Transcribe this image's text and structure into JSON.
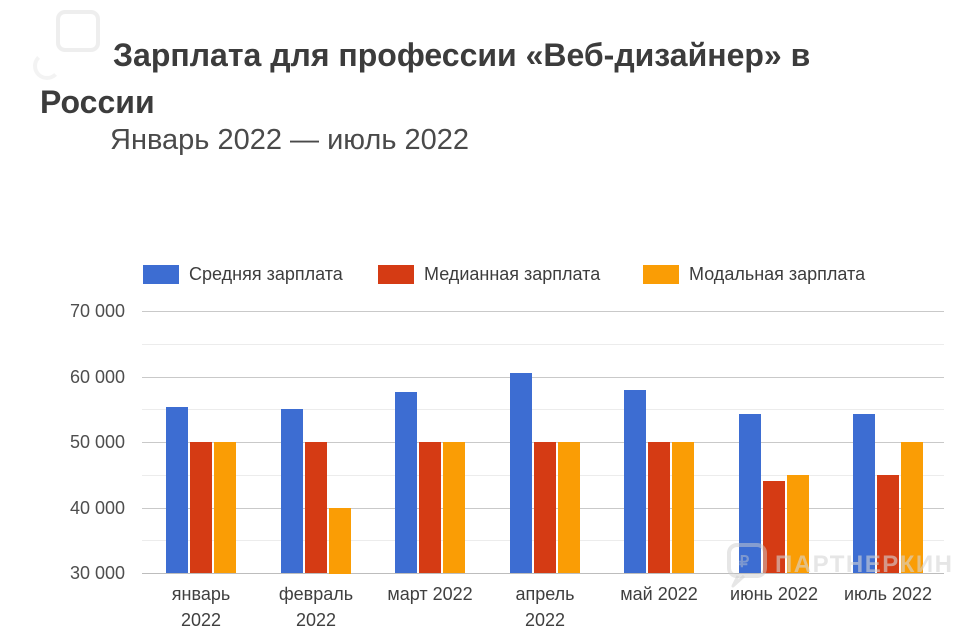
{
  "header": {
    "title_line1": "Зарплата для профессии «Веб-дизайнер» в",
    "title_line2": "России",
    "subtitle": "Январь 2022 — июль 2022"
  },
  "legend": [
    {
      "key": "average",
      "label": "Средняя зарплата",
      "color": "#3D6DD2"
    },
    {
      "key": "median",
      "label": "Медианная зарплата",
      "color": "#D53B14"
    },
    {
      "key": "modal",
      "label": "Модальная зарплата",
      "color": "#FA9D05"
    }
  ],
  "watermark": {
    "text": "ПАРТНЕРКИН",
    "icon": "partnerkin-logo-icon"
  },
  "chart_data": {
    "type": "bar",
    "title": "Зарплата для профессии «Веб-дизайнер» в России",
    "subtitle": "Январь 2022 — июль 2022",
    "categories": [
      "январь 2022",
      "февраль 2022",
      "март 2022",
      "апрель 2022",
      "май 2022",
      "июнь 2022",
      "июль 2022"
    ],
    "category_label_lines": [
      [
        "январь",
        "2022"
      ],
      [
        "февраль",
        "2022"
      ],
      [
        "март 2022"
      ],
      [
        "апрель",
        "2022"
      ],
      [
        "май 2022"
      ],
      [
        "июнь 2022"
      ],
      [
        "июль 2022"
      ]
    ],
    "series": [
      {
        "key": "average",
        "name": "Средняя зарплата",
        "color": "#3D6DD2",
        "values": [
          55300,
          55100,
          57600,
          60500,
          57900,
          54200,
          54200
        ]
      },
      {
        "key": "median",
        "name": "Медианная зарплата",
        "color": "#D53B14",
        "values": [
          50000,
          50000,
          50000,
          50000,
          50000,
          44000,
          45000
        ]
      },
      {
        "key": "modal",
        "name": "Модальная зарплата",
        "color": "#FA9D05",
        "values": [
          50000,
          40000,
          50000,
          50000,
          50000,
          45000,
          50000
        ]
      }
    ],
    "xlabel": "",
    "ylabel": "",
    "ylim": [
      30000,
      70000
    ],
    "ytick_interval": 10000,
    "minor_grid_interval": 5000,
    "yticks_labels": [
      "30 000",
      "40 000",
      "50 000",
      "60 000",
      "70 000"
    ],
    "grid": true,
    "legend_position": "top"
  }
}
